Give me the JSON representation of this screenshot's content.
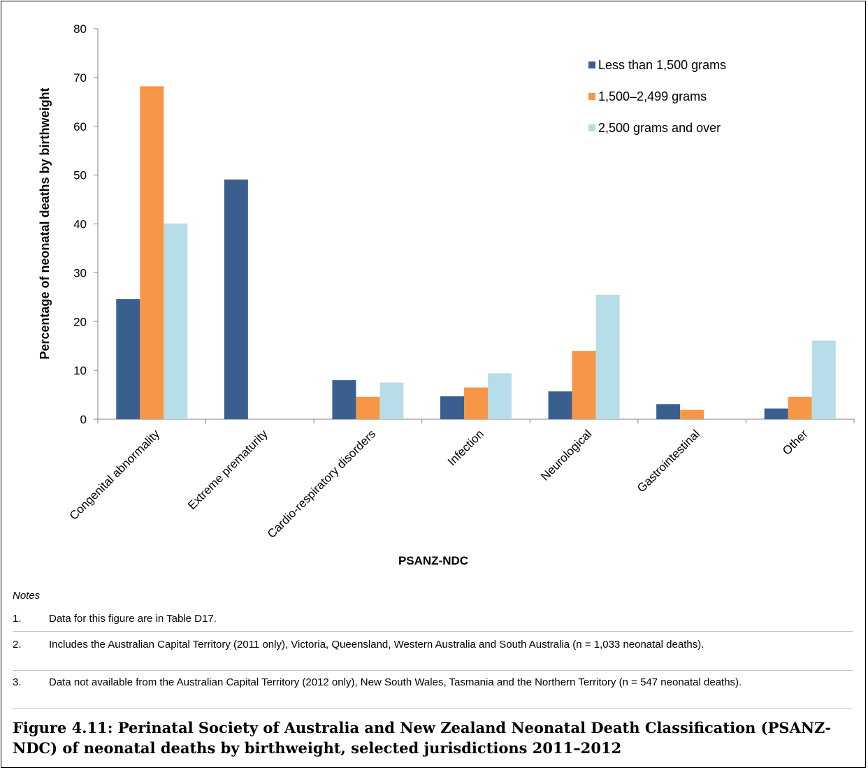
{
  "chart_data": {
    "type": "bar",
    "categories": [
      "Congenital abnormality",
      "Extreme prematurity",
      "Cardio-respiratory disorders",
      "Infection",
      "Neurological",
      "Gastrointestinal",
      "Other"
    ],
    "series": [
      {
        "name": "Less than 1,500 grams",
        "color": "#3a5f8f",
        "values": [
          24.6,
          49.1,
          8.0,
          4.7,
          5.7,
          3.1,
          2.2
        ]
      },
      {
        "name": "1,500–2,499 grams",
        "color": "#f79646",
        "values": [
          68.2,
          0,
          4.6,
          6.5,
          14.0,
          1.9,
          4.6
        ]
      },
      {
        "name": "2,500 grams and over",
        "color": "#b7dde8",
        "values": [
          40.1,
          0,
          7.5,
          9.4,
          25.5,
          0,
          16.1
        ]
      }
    ],
    "xlabel": "PSANZ-NDC",
    "ylabel": "Percentage of neonatal deaths by birthweight",
    "ylim": [
      0,
      80
    ],
    "yticks": [
      0,
      10,
      20,
      30,
      40,
      50,
      60,
      70,
      80
    ],
    "legend_position": "top-right",
    "grid": false
  },
  "notes": {
    "heading": "Notes",
    "items": [
      {
        "num": "1.",
        "text": "Data for this figure are in Table D17."
      },
      {
        "num": "2.",
        "text": "Includes the Australian Capital Territory (2011 only), Victoria, Queensland, Western Australia and South Australia (n = 1,033 neonatal deaths)."
      },
      {
        "num": "3.",
        "text": "Data not available from the Australian Capital Territory (2012 only), New South Wales, Tasmania and the Northern Territory (n = 547 neonatal deaths)."
      }
    ]
  },
  "caption": "Figure 4.11: Perinatal Society of Australia and New Zealand Neonatal Death Classification (PSANZ-NDC) of neonatal deaths by birthweight, selected jurisdictions 2011–2012"
}
